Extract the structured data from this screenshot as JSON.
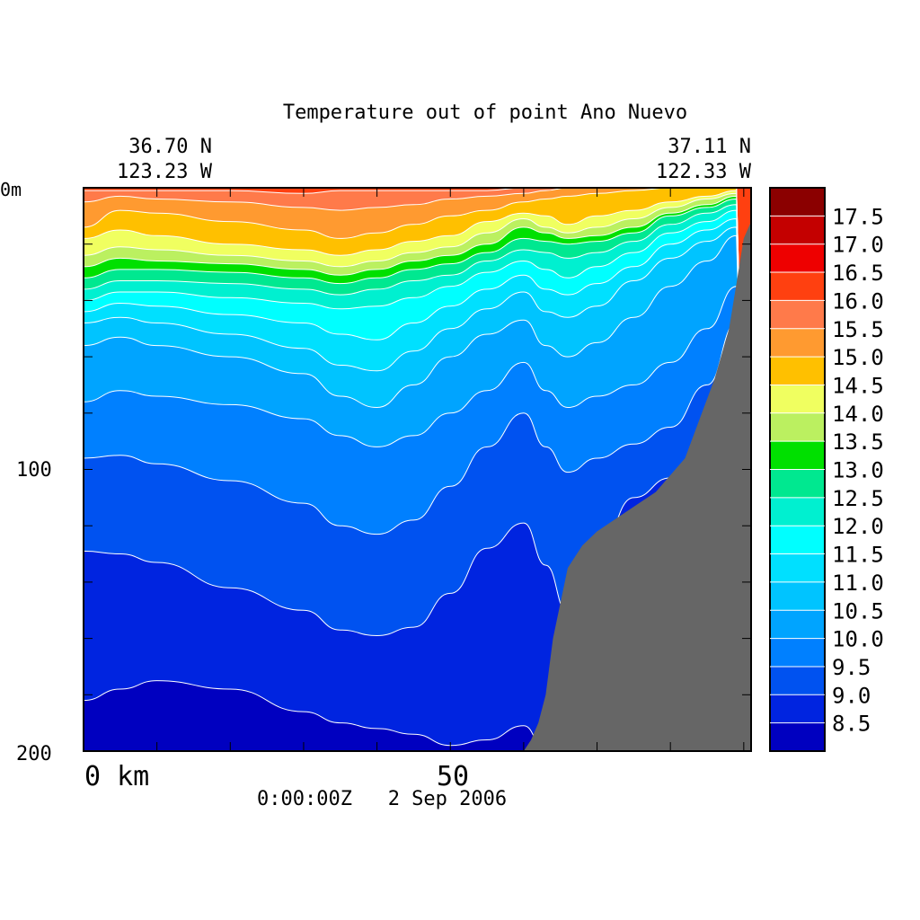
{
  "chart_data": {
    "type": "heatmap",
    "title": "Temperature out of point Ano Nuevo",
    "corners": {
      "left": {
        "lat": "36.70 N",
        "lon": "123.23 W"
      },
      "right": {
        "lat": "37.11 N",
        "lon": "122.33 W"
      }
    },
    "x_axis": {
      "ticks": [
        {
          "value": 0,
          "label": "0 km"
        },
        {
          "value": 50,
          "label": "50"
        }
      ],
      "xlim": [
        0,
        91
      ]
    },
    "y_axis": {
      "ticks": [
        {
          "value": 0,
          "label": "0m"
        },
        {
          "value": 100,
          "label": "100"
        },
        {
          "value": 200,
          "label": "200"
        }
      ],
      "ylim": [
        200,
        0
      ],
      "inverted": true
    },
    "time_label": "0:00:00Z   2 Sep 2006",
    "colorbar": {
      "labels": [
        "17.5",
        "17.0",
        "16.5",
        "16.0",
        "15.5",
        "15.0",
        "14.5",
        "14.0",
        "13.5",
        "13.0",
        "12.5",
        "12.0",
        "11.5",
        "11.0",
        "10.5",
        "10.0",
        "9.5",
        "9.0",
        "8.5"
      ],
      "colors": [
        "#8b0000",
        "#c40000",
        "#ee0000",
        "#ff4010",
        "#ff7a4a",
        "#ff9a30",
        "#ffc000",
        "#f0ff60",
        "#bbf060",
        "#00e000",
        "#00e890",
        "#00f0d0",
        "#00ffff",
        "#00e0ff",
        "#00c4ff",
        "#00a4ff",
        "#0080ff",
        "#0052f0",
        "#0024e0",
        "#0000c0"
      ]
    },
    "levels_top_to_bottom": [
      "16.0",
      "15.5",
      "15.0",
      "14.5",
      "14.0",
      "13.5",
      "13.0",
      "12.5",
      "12.0",
      "11.5",
      "11.0",
      "10.5",
      "10.0",
      "9.5",
      "9.0",
      "8.5"
    ],
    "isotherm_depths_m": [
      {
        "x_km": [
          0,
          5,
          10,
          20,
          30,
          35,
          40,
          45,
          50,
          55,
          60,
          63,
          66,
          70,
          75,
          80,
          85,
          89
        ],
        "depth": [
          [
            1,
            1,
            1,
            1,
            2,
            1,
            1,
            1,
            1,
            1,
            0,
            0,
            0,
            0,
            0,
            0,
            0,
            0
          ],
          [
            5,
            3,
            4,
            5,
            7,
            8,
            7,
            6,
            4,
            3,
            2,
            1,
            0,
            0,
            0,
            0,
            0,
            0
          ],
          [
            14,
            8,
            9,
            12,
            15,
            18,
            16,
            13,
            10,
            8,
            5,
            4,
            3,
            2,
            1,
            0,
            0,
            0
          ],
          [
            18,
            15,
            17,
            20,
            22,
            24,
            22,
            19,
            17,
            12,
            9,
            10,
            13,
            10,
            8,
            5,
            3,
            1
          ],
          [
            24,
            21,
            22,
            24,
            26,
            28,
            26,
            23,
            21,
            16,
            11,
            14,
            16,
            14,
            11,
            7,
            4,
            2
          ],
          [
            28,
            25,
            26,
            27,
            29,
            31,
            29,
            26,
            24,
            20,
            14,
            16,
            18,
            17,
            14,
            9,
            6,
            3
          ],
          [
            32,
            29,
            29,
            30,
            32,
            34,
            32,
            29,
            27,
            23,
            18,
            19,
            20,
            19,
            16,
            10,
            7,
            4
          ],
          [
            36,
            33,
            33,
            34,
            36,
            38,
            36,
            33,
            31,
            26,
            22,
            23,
            25,
            23,
            19,
            13,
            9,
            6
          ],
          [
            40,
            37,
            37,
            39,
            41,
            43,
            42,
            39,
            35,
            30,
            26,
            29,
            32,
            28,
            23,
            16,
            12,
            8
          ],
          [
            44,
            41,
            42,
            45,
            48,
            52,
            54,
            48,
            42,
            36,
            31,
            36,
            38,
            34,
            28,
            20,
            15,
            11
          ],
          [
            48,
            46,
            48,
            52,
            57,
            63,
            65,
            58,
            50,
            43,
            37,
            44,
            46,
            42,
            33,
            25,
            19,
            14
          ],
          [
            56,
            53,
            56,
            60,
            66,
            74,
            78,
            70,
            60,
            52,
            47,
            56,
            60,
            55,
            46,
            35,
            26,
            17
          ],
          [
            76,
            72,
            74,
            77,
            82,
            88,
            92,
            88,
            80,
            72,
            62,
            72,
            78,
            74,
            70,
            62,
            50,
            35
          ],
          [
            96,
            95,
            98,
            104,
            112,
            120,
            123,
            118,
            106,
            92,
            80,
            92,
            101,
            96,
            91,
            85,
            70,
            48
          ],
          [
            129,
            130,
            133,
            142,
            150,
            157,
            159,
            156,
            144,
            128,
            119,
            134,
            151,
            130,
            110,
            103,
            85,
            60
          ],
          [
            182,
            178,
            175,
            178,
            186,
            190,
            192,
            194,
            198,
            196,
            191,
            200,
            200,
            196,
            182,
            160,
            120,
            80
          ]
        ]
      }
    ],
    "bathymetry": {
      "x_km": [
        60,
        61,
        62,
        63,
        64,
        66,
        68,
        70,
        74,
        78,
        82,
        84,
        86,
        88,
        89,
        90,
        91
      ],
      "bottom_depth_m": [
        200,
        196,
        190,
        180,
        160,
        135,
        127,
        122,
        115,
        108,
        96,
        82,
        68,
        50,
        34,
        18,
        12
      ]
    },
    "grid": false
  }
}
